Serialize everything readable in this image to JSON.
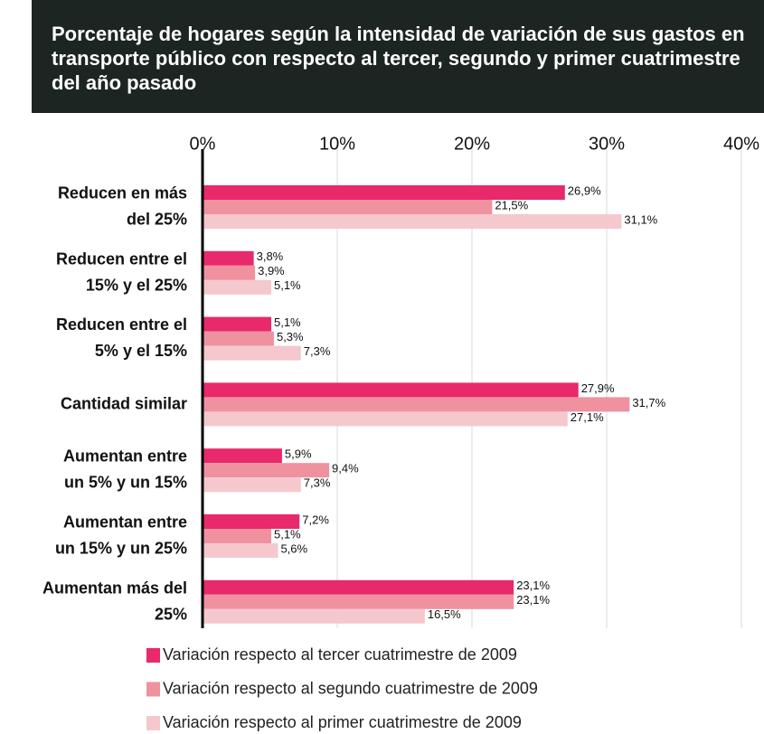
{
  "chart_data": {
    "type": "hbar",
    "title": "Porcentaje de hogares según la intensidad de variación de sus gastos en transporte público con respecto al tercer, segundo y primer cuatrimestre del año pasado",
    "categories": [
      "Reducen en más\ndel 25%",
      "Reducen entre el\n15% y el 25%",
      "Reducen entre el\n5% y el 15%",
      "Cantidad similar",
      "Aumentan entre\nun 5% y un 15%",
      "Aumentan entre\nun 15% y un 25%",
      "Aumentan más del\n25%"
    ],
    "series": [
      {
        "name": "Variación respecto al tercer cuatrimestre de 2009",
        "color": "#e8296b",
        "values": [
          26.9,
          3.8,
          5.1,
          27.9,
          5.9,
          7.2,
          23.1
        ],
        "value_labels": [
          "26,9%",
          "3,8%",
          "5,1%",
          "27,9%",
          "5,9%",
          "7,2%",
          "23,1%"
        ]
      },
      {
        "name": "Variación respecto al segundo cuatrimestre de 2009",
        "color": "#f0919f",
        "values": [
          21.5,
          3.9,
          5.3,
          31.7,
          9.4,
          5.1,
          23.1
        ],
        "value_labels": [
          "21,5%",
          "3,9%",
          "5,3%",
          "31,7%",
          "9,4%",
          "5,1%",
          "23,1%"
        ]
      },
      {
        "name": "Variación respecto al primer cuatrimestre de 2009",
        "color": "#f4c8cd",
        "values": [
          31.1,
          5.1,
          7.3,
          27.1,
          7.3,
          5.6,
          16.5
        ],
        "value_labels": [
          "31,1%",
          "5,1%",
          "7,3%",
          "27,1%",
          "7,3%",
          "5,6%",
          "16,5%"
        ]
      }
    ],
    "xlim": [
      0,
      40
    ],
    "xticks": [
      {
        "value": 0,
        "label": "0%"
      },
      {
        "value": 10,
        "label": "10%"
      },
      {
        "value": 20,
        "label": "20%"
      },
      {
        "value": 30,
        "label": "30%"
      },
      {
        "value": 40,
        "label": "40%"
      }
    ],
    "grid": true
  }
}
